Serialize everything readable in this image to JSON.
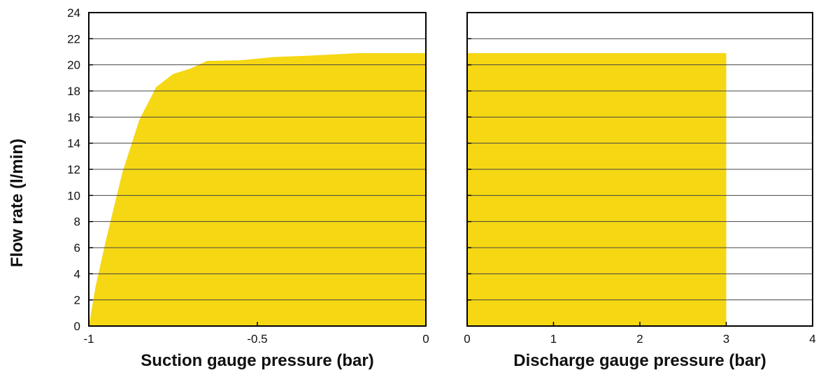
{
  "colors": {
    "fill": "#f6d713",
    "axis": "#000000",
    "grid": "#444444",
    "text": "#111111"
  },
  "shared_ylabel": "Flow rate (l/min)",
  "chart_data": [
    {
      "type": "area",
      "xlabel": "Suction gauge pressure (bar)",
      "xlim": [
        -1,
        0
      ],
      "ylim": [
        0,
        24
      ],
      "xticks": [
        -1,
        -0.5,
        0
      ],
      "xtick_labels": [
        "-1",
        "-0.5",
        "0"
      ],
      "yticks": [
        0,
        2,
        4,
        6,
        8,
        10,
        12,
        14,
        16,
        18,
        20,
        22,
        24
      ],
      "ytick_labels": [
        "0",
        "2",
        "4",
        "6",
        "8",
        "10",
        "12",
        "14",
        "16",
        "18",
        "20",
        "22",
        "24"
      ],
      "grid": true,
      "x": [
        -1,
        -0.98,
        -0.95,
        -0.9,
        -0.85,
        -0.8,
        -0.75,
        -0.7,
        -0.65,
        -0.55,
        -0.45,
        -0.35,
        -0.2,
        -0.1,
        0
      ],
      "y": [
        0,
        3,
        6.5,
        11.8,
        15.8,
        18.3,
        19.3,
        19.7,
        20.3,
        20.35,
        20.6,
        20.7,
        20.9,
        20.9,
        20.9
      ]
    },
    {
      "type": "area",
      "xlabel": "Discharge gauge pressure (bar)",
      "xlim": [
        0,
        4
      ],
      "ylim": [
        0,
        24
      ],
      "xticks": [
        0,
        1,
        2,
        3,
        4
      ],
      "xtick_labels": [
        "0",
        "1",
        "2",
        "3",
        "4"
      ],
      "yticks": [
        0,
        2,
        4,
        6,
        8,
        10,
        12,
        14,
        16,
        18,
        20,
        22,
        24
      ],
      "grid": true,
      "x": [
        0,
        3,
        3
      ],
      "y": [
        20.9,
        20.9,
        0
      ]
    }
  ]
}
